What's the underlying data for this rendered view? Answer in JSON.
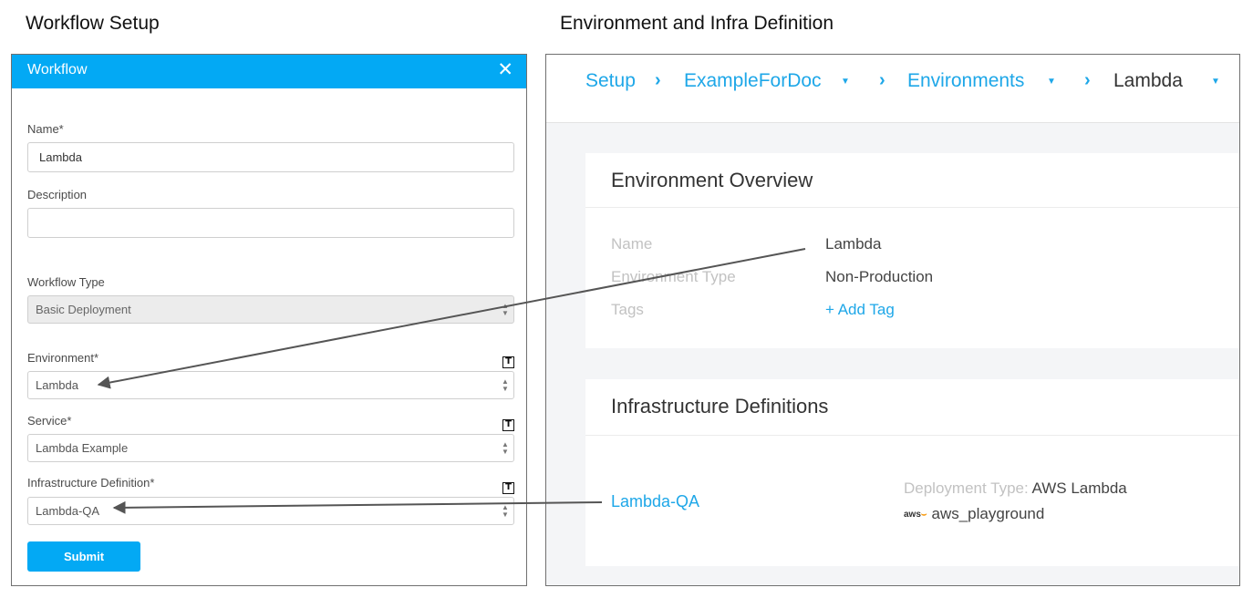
{
  "captions": {
    "left": "Workflow Setup",
    "right": "Environment and Infra Definition"
  },
  "dialog": {
    "title": "Workflow",
    "close_glyph": "✕",
    "fields": {
      "name": {
        "label": "Name*",
        "value": "Lambda"
      },
      "description": {
        "label": "Description",
        "value": ""
      },
      "workflow_type": {
        "label": "Workflow Type",
        "value": "Basic Deployment"
      },
      "environment": {
        "label": "Environment*",
        "value": "Lambda"
      },
      "service": {
        "label": "Service*",
        "value": "Lambda Example"
      },
      "infra_definition": {
        "label": "Infrastructure Definition*",
        "value": "Lambda-QA"
      }
    },
    "template_icon": "T",
    "submit_label": "Submit"
  },
  "breadcrumb": {
    "items": [
      "Setup",
      "ExampleForDoc",
      "Environments",
      "Lambda"
    ],
    "separator": "›",
    "dropdown_glyph": "▼"
  },
  "overview": {
    "title": "Environment Overview",
    "rows": [
      {
        "label": "Name",
        "value": "Lambda"
      },
      {
        "label": "Environment Type",
        "value": "Non-Production"
      },
      {
        "label": "Tags",
        "value": "+ Add Tag"
      }
    ]
  },
  "infra": {
    "title": "Infrastructure Definitions",
    "item_name": "Lambda-QA",
    "deployment_type_label": "Deployment Type:",
    "deployment_type_value": "AWS Lambda",
    "aws_logo_text": "aws",
    "aws_logo_smile": "⌣",
    "cloud_provider": "aws_playground"
  },
  "colors": {
    "accent": "#03a9f4",
    "link": "#1ea7e8",
    "arrow": "#555555"
  },
  "icons": [
    "close-icon",
    "chevron-right-icon",
    "caret-down-icon",
    "select-caret-icon",
    "template-t-icon",
    "aws-logo-icon"
  ]
}
